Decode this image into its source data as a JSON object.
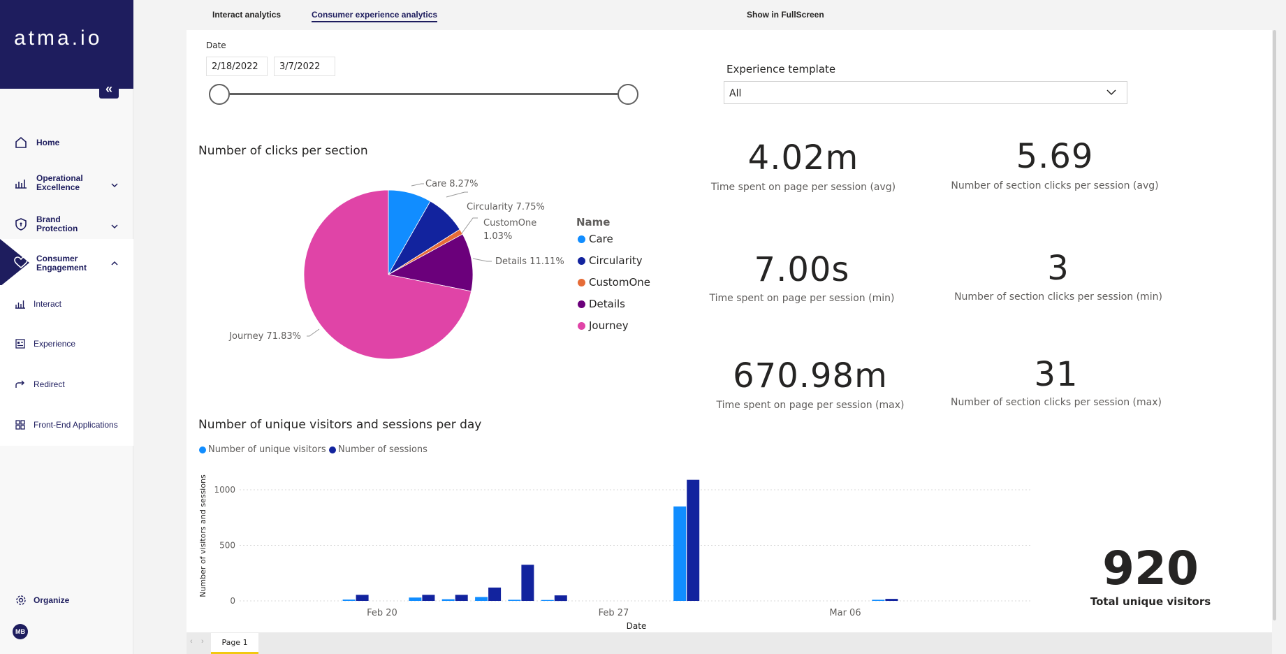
{
  "sidebar": {
    "brand": "atma.io",
    "items": [
      {
        "label": "Home",
        "icon": "home-icon"
      },
      {
        "label_line1": "Operational",
        "label_line2": "Excellence",
        "icon": "chart-icon"
      },
      {
        "label_line1": "Brand",
        "label_line2": "Protection",
        "icon": "shield-icon"
      },
      {
        "label_line1": "Consumer",
        "label_line2": "Engagement",
        "icon": "heart-icon"
      }
    ],
    "subitems": [
      {
        "label": "Interact",
        "icon": "bar-chart-icon"
      },
      {
        "label": "Experience",
        "icon": "layout-icon"
      },
      {
        "label": "Redirect",
        "icon": "redirect-icon"
      },
      {
        "label": "Front-End Applications",
        "icon": "grid-icon"
      }
    ],
    "organize": "Organize",
    "avatar_initials": "MB"
  },
  "tabs": {
    "interact": "Interact analytics",
    "consumer": "Consumer experience analytics",
    "fullscreen": "Show in FullScreen"
  },
  "filters": {
    "date_label": "Date",
    "date_start": "2/18/2022",
    "date_end": "3/7/2022",
    "template_label": "Experience template",
    "template_value": "All"
  },
  "pie": {
    "title": "Number of clicks per section",
    "legend_title": "Name",
    "labels": {
      "care": "Care 8.27%",
      "circularity": "Circularity 7.75%",
      "customone_1": "CustomOne",
      "customone_2": "1.03%",
      "details": "Details 11.11%",
      "journey": "Journey 71.83%"
    }
  },
  "kpis": {
    "avg_time": "4.02m",
    "avg_time_label": "Time spent on page per session (avg)",
    "avg_clicks": "5.69",
    "avg_clicks_label": "Number of section clicks per session (avg)",
    "min_time": "7.00s",
    "min_time_label": "Time spent on page per session (min)",
    "min_clicks": "3",
    "min_clicks_label": "Number of section clicks per session (min)",
    "max_time": "670.98m",
    "max_time_label": "Time spent on page per session (max)",
    "max_clicks": "31",
    "max_clicks_label": "Number of section clicks per session (max)"
  },
  "bar": {
    "title": "Number of unique visitors and sessions per day",
    "legend_visitors": "Number of unique visitors",
    "legend_sessions": "Number of sessions"
  },
  "total": {
    "value": "920",
    "label": "Total unique visitors"
  },
  "page_tab": "Page 1",
  "colors": {
    "navy": "#1e1d5e",
    "care": "#118dff",
    "circularity": "#12239e",
    "customone": "#e66c37",
    "details": "#6b007b",
    "journey": "#e044a7"
  },
  "chart_data": [
    {
      "type": "pie",
      "title": "Number of clicks per section",
      "legend_title": "Name",
      "slices": [
        {
          "name": "Care",
          "value": 8.27,
          "color": "#118dff"
        },
        {
          "name": "Circularity",
          "value": 7.75,
          "color": "#12239e"
        },
        {
          "name": "CustomOne",
          "value": 1.03,
          "color": "#e66c37"
        },
        {
          "name": "Details",
          "value": 11.11,
          "color": "#6b007b"
        },
        {
          "name": "Journey",
          "value": 71.83,
          "color": "#e044a7"
        }
      ]
    },
    {
      "type": "bar",
      "title": "Number of unique visitors and sessions per day",
      "xlabel": "Date",
      "ylabel": "Number of visitors and sessions",
      "ylim": [
        0,
        1100
      ],
      "yticks": [
        0,
        500,
        1000
      ],
      "xticks": [
        "Feb 20",
        "Feb 27",
        "Mar 06"
      ],
      "x": [
        "2022-02-18",
        "2022-02-19",
        "2022-02-20",
        "2022-02-21",
        "2022-02-22",
        "2022-02-23",
        "2022-02-24",
        "2022-02-25",
        "2022-02-26",
        "2022-02-27",
        "2022-02-28",
        "2022-03-01",
        "2022-03-02",
        "2022-03-03",
        "2022-03-04",
        "2022-03-05",
        "2022-03-06",
        "2022-03-07"
      ],
      "legend": "top-left",
      "grid": true,
      "series": [
        {
          "name": "Number of unique visitors",
          "color": "#118dff",
          "values": [
            0,
            12,
            0,
            30,
            15,
            35,
            10,
            8,
            0,
            0,
            0,
            850,
            0,
            0,
            0,
            0,
            0,
            10
          ]
        },
        {
          "name": "Number of sessions",
          "color": "#12239e",
          "values": [
            0,
            55,
            0,
            55,
            55,
            120,
            325,
            50,
            0,
            0,
            0,
            1090,
            0,
            0,
            0,
            0,
            0,
            18
          ]
        }
      ]
    }
  ]
}
